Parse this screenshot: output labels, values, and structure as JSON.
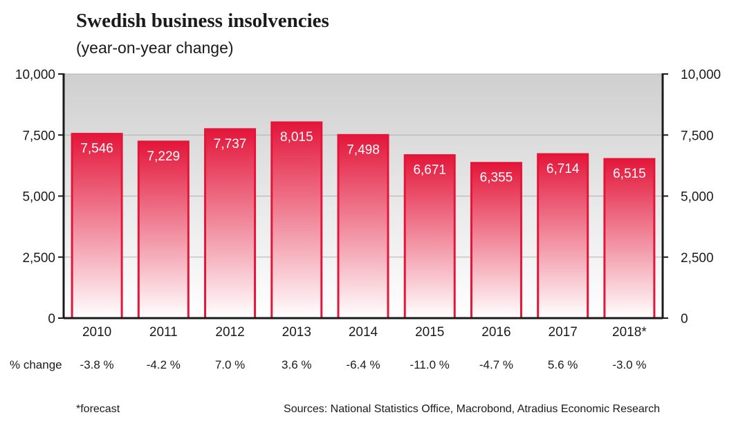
{
  "chart_data": {
    "type": "bar",
    "title": "Swedish business insolvencies",
    "subtitle": "(year-on-year change)",
    "categories": [
      "2010",
      "2011",
      "2012",
      "2013",
      "2014",
      "2015",
      "2016",
      "2017",
      "2018*"
    ],
    "values": [
      7546,
      7229,
      7737,
      8015,
      7498,
      6671,
      6355,
      6714,
      6515
    ],
    "value_labels": [
      "7,546",
      "7,229",
      "7,737",
      "8,015",
      "7,498",
      "6,671",
      "6,355",
      "6,714",
      "6,515"
    ],
    "change_label": "% change",
    "changes": [
      "-3.8 %",
      "-4.2 %",
      "7.0 %",
      "3.6 %",
      "-6.4 %",
      "-11.0 %",
      "-4.7 %",
      "5.6 %",
      "-3.0 %"
    ],
    "ylim": [
      0,
      10000
    ],
    "yticks": [
      0,
      2500,
      5000,
      7500,
      10000
    ],
    "ytick_labels": [
      "0",
      "2,500",
      "5,000",
      "7,500",
      "10,000"
    ],
    "grid": true,
    "axes": "left-and-right"
  },
  "colors": {
    "bar": "#e3163a",
    "bar_fade": "#ffffff",
    "plot_top": "#cfcfcf",
    "plot_bottom": "#ffffff",
    "grid": "#b0b0b0",
    "axis": "#1a1a1a"
  },
  "footnote": "*forecast",
  "sources": "Sources: National Statistics Office, Macrobond, Atradius Economic Research"
}
